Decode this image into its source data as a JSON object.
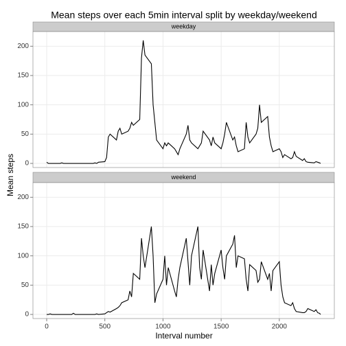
{
  "chart_data": {
    "type": "line",
    "title": "Mean steps over each 5min interval split by weekday/weekend",
    "x_label": "Interval number",
    "y_label": "Mean steps",
    "x": [
      0,
      15,
      30,
      45,
      100,
      115,
      130,
      145,
      200,
      215,
      230,
      245,
      300,
      315,
      330,
      345,
      400,
      415,
      430,
      445,
      500,
      515,
      530,
      545,
      600,
      615,
      630,
      645,
      700,
      715,
      730,
      745,
      800,
      815,
      830,
      845,
      900,
      915,
      930,
      945,
      1000,
      1015,
      1030,
      1045,
      1100,
      1115,
      1130,
      1145,
      1200,
      1215,
      1230,
      1245,
      1300,
      1315,
      1330,
      1345,
      1400,
      1415,
      1430,
      1445,
      1500,
      1515,
      1530,
      1545,
      1600,
      1615,
      1630,
      1645,
      1700,
      1715,
      1730,
      1745,
      1800,
      1815,
      1830,
      1845,
      1900,
      1915,
      1930,
      1945,
      2000,
      2015,
      2030,
      2045,
      2100,
      2115,
      2130,
      2145,
      2200,
      2215,
      2230,
      2245,
      2300,
      2315,
      2330,
      2345,
      2355
    ],
    "series": [
      {
        "name": "weekday",
        "color": "#000000",
        "values": [
          2,
          0,
          0,
          0,
          0,
          0,
          1,
          0,
          0,
          0,
          0,
          0,
          0,
          0,
          0,
          0,
          0,
          1,
          0,
          2,
          3,
          10,
          45,
          50,
          40,
          55,
          60,
          50,
          55,
          60,
          70,
          65,
          75,
          180,
          210,
          185,
          170,
          100,
          70,
          40,
          25,
          35,
          30,
          35,
          25,
          20,
          15,
          25,
          50,
          65,
          40,
          35,
          25,
          30,
          35,
          55,
          40,
          30,
          45,
          35,
          25,
          35,
          50,
          70,
          40,
          45,
          30,
          20,
          25,
          70,
          45,
          35,
          50,
          60,
          100,
          70,
          80,
          45,
          30,
          20,
          25,
          20,
          10,
          15,
          8,
          10,
          20,
          12,
          5,
          8,
          3,
          2,
          1,
          3,
          2,
          1,
          0
        ]
      },
      {
        "name": "weekend",
        "color": "#000000",
        "values": [
          0,
          0,
          1,
          0,
          0,
          0,
          0,
          0,
          0,
          0,
          2,
          0,
          0,
          0,
          0,
          0,
          0,
          0,
          1,
          0,
          1,
          3,
          5,
          4,
          10,
          12,
          15,
          20,
          25,
          40,
          30,
          70,
          60,
          130,
          100,
          80,
          150,
          100,
          20,
          35,
          60,
          100,
          50,
          80,
          40,
          30,
          60,
          80,
          130,
          90,
          50,
          100,
          150,
          80,
          60,
          110,
          40,
          85,
          50,
          70,
          110,
          80,
          60,
          100,
          120,
          135,
          80,
          100,
          95,
          60,
          40,
          85,
          75,
          55,
          60,
          90,
          60,
          70,
          40,
          75,
          90,
          50,
          30,
          20,
          15,
          20,
          10,
          5,
          3,
          3,
          5,
          10,
          5,
          8,
          3,
          2,
          0
        ]
      }
    ],
    "xlim": [
      -118,
      2473
    ],
    "ylim": [
      -7,
      225
    ],
    "xticks": [
      0,
      500,
      1000,
      1500,
      2000
    ],
    "yticks": [
      0,
      50,
      100,
      150,
      200
    ],
    "grid": true
  }
}
